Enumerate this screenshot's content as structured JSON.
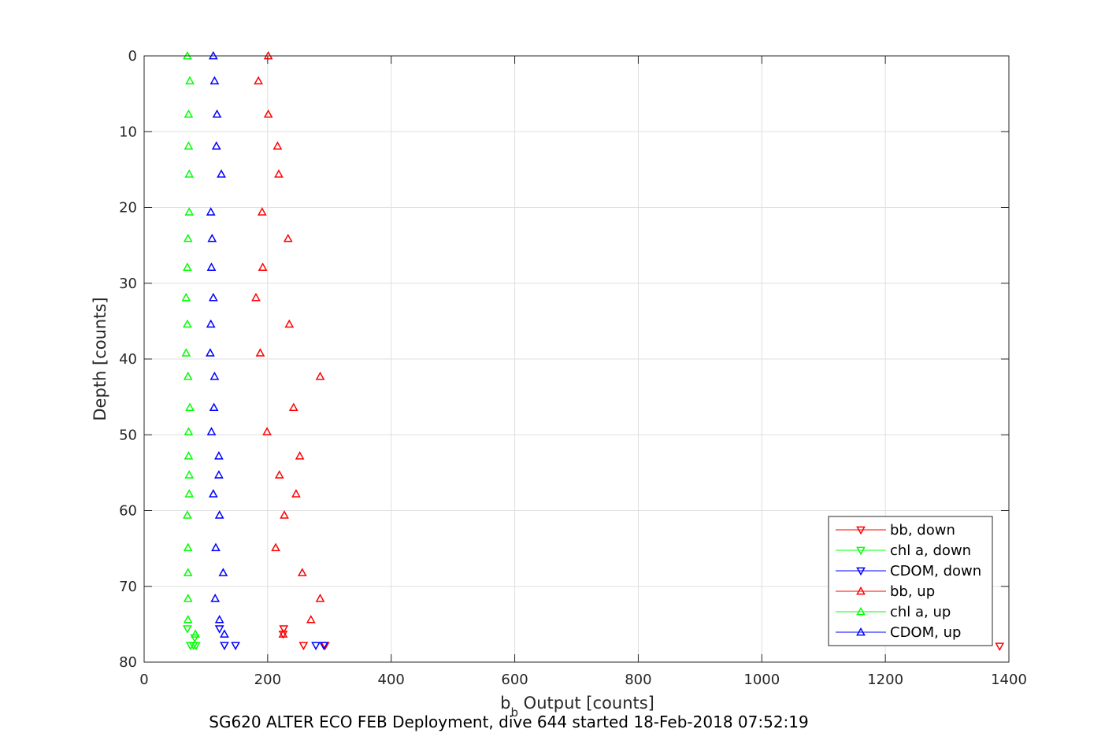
{
  "chart_data": {
    "type": "scatter",
    "xlabel_main": "b",
    "xlabel_sub": "b",
    "xlabel_rest": " Output [counts]",
    "ylabel": "Depth [counts]",
    "caption": "SG620 ALTER ECO FEB Deployment, dive 644 started 18-Feb-2018 07:52:19",
    "xlim": [
      0,
      1400
    ],
    "ylim": [
      0,
      80
    ],
    "y_reversed": true,
    "grid": true,
    "legend_position": "bottom-right",
    "x_ticks": [
      0,
      200,
      400,
      600,
      800,
      1000,
      1200,
      1400
    ],
    "y_ticks": [
      0,
      10,
      20,
      30,
      40,
      50,
      60,
      70,
      80
    ],
    "series": [
      {
        "name": "bb, down",
        "color": "#ff0000",
        "marker": "triangle-down",
        "points": [
          [
            226,
            75.6
          ],
          [
            225,
            76.3
          ],
          [
            258,
            77.8
          ],
          [
            293,
            77.8
          ],
          [
            1385,
            77.9
          ]
        ]
      },
      {
        "name": "chl a, down",
        "color": "#00ff00",
        "marker": "triangle-down",
        "points": [
          [
            70,
            75.6
          ],
          [
            82,
            76.8
          ],
          [
            75,
            77.8
          ],
          [
            80,
            77.8
          ],
          [
            84,
            77.8
          ]
        ]
      },
      {
        "name": "CDOM, down",
        "color": "#0000ff",
        "marker": "triangle-down",
        "points": [
          [
            122,
            75.6
          ],
          [
            130,
            77.8
          ],
          [
            148,
            77.8
          ],
          [
            278,
            77.8
          ],
          [
            291,
            77.8
          ]
        ]
      },
      {
        "name": "bb, up",
        "color": "#ff0000",
        "marker": "triangle-up",
        "points": [
          [
            201,
            0
          ],
          [
            185,
            3.3
          ],
          [
            201,
            7.7
          ],
          [
            216,
            11.9
          ],
          [
            218,
            15.6
          ],
          [
            191,
            20.6
          ],
          [
            233,
            24.1
          ],
          [
            192,
            27.9
          ],
          [
            181,
            31.9
          ],
          [
            235,
            35.4
          ],
          [
            188,
            39.2
          ],
          [
            285,
            42.3
          ],
          [
            242,
            46.4
          ],
          [
            199,
            49.6
          ],
          [
            252,
            52.8
          ],
          [
            219,
            55.3
          ],
          [
            246,
            57.8
          ],
          [
            227,
            60.6
          ],
          [
            213,
            64.9
          ],
          [
            256,
            68.2
          ],
          [
            285,
            71.6
          ],
          [
            270,
            74.4
          ],
          [
            225,
            76.3
          ]
        ]
      },
      {
        "name": "chl a, up",
        "color": "#00ff00",
        "marker": "triangle-up",
        "points": [
          [
            70,
            0
          ],
          [
            74,
            3.3
          ],
          [
            72,
            7.7
          ],
          [
            72,
            11.9
          ],
          [
            73,
            15.6
          ],
          [
            73,
            20.6
          ],
          [
            71,
            24.1
          ],
          [
            70,
            27.9
          ],
          [
            68,
            31.9
          ],
          [
            70,
            35.4
          ],
          [
            68,
            39.2
          ],
          [
            71,
            42.3
          ],
          [
            74,
            46.4
          ],
          [
            72,
            49.6
          ],
          [
            72,
            52.8
          ],
          [
            73,
            55.3
          ],
          [
            73,
            57.8
          ],
          [
            70,
            60.6
          ],
          [
            71,
            64.9
          ],
          [
            71,
            68.2
          ],
          [
            71,
            71.6
          ],
          [
            71,
            74.4
          ],
          [
            83,
            76.3
          ]
        ]
      },
      {
        "name": "CDOM, up",
        "color": "#0000ff",
        "marker": "triangle-up",
        "points": [
          [
            112,
            0
          ],
          [
            114,
            3.3
          ],
          [
            118,
            7.7
          ],
          [
            117,
            11.9
          ],
          [
            125,
            15.6
          ],
          [
            108,
            20.6
          ],
          [
            110,
            24.1
          ],
          [
            109,
            27.9
          ],
          [
            112,
            31.9
          ],
          [
            108,
            35.4
          ],
          [
            107,
            39.2
          ],
          [
            114,
            42.3
          ],
          [
            113,
            46.4
          ],
          [
            109,
            49.6
          ],
          [
            121,
            52.8
          ],
          [
            121,
            55.3
          ],
          [
            112,
            57.8
          ],
          [
            122,
            60.6
          ],
          [
            116,
            64.9
          ],
          [
            128,
            68.2
          ],
          [
            115,
            71.6
          ],
          [
            122,
            74.4
          ],
          [
            130,
            76.3
          ]
        ]
      }
    ]
  }
}
